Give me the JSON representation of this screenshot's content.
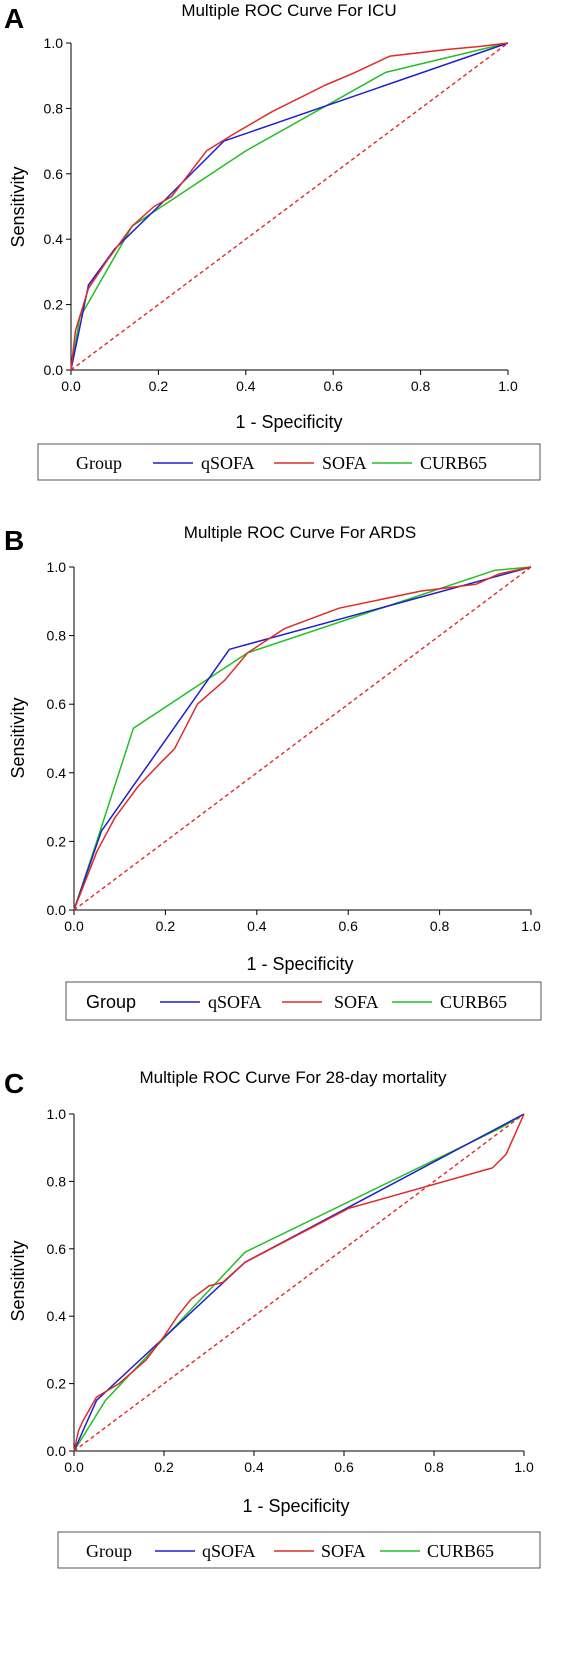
{
  "series_colors": {
    "qSOFA": "#1f1fd0",
    "SOFA": "#e02a2a",
    "CURB65": "#22c022",
    "reference": "#e02a2a"
  },
  "chart_data": [
    {
      "type": "line",
      "panel_label": "A",
      "title": "Multiple ROC Curve For ICU",
      "xlabel": "1 - Specificity",
      "ylabel": "Sensitivity",
      "xlim": [
        0,
        1
      ],
      "ylim": [
        0,
        1
      ],
      "xticks": [
        "0.0",
        "0.2",
        "0.4",
        "0.6",
        "0.8",
        "1.0"
      ],
      "yticks": [
        "0.0",
        "0.2",
        "0.4",
        "0.6",
        "0.8",
        "1.0"
      ],
      "legend_title": "Group",
      "legend_position": "bottom",
      "reference_line": {
        "style": "dashed",
        "x": [
          0,
          1
        ],
        "y": [
          0,
          1
        ]
      },
      "series": [
        {
          "name": "qSOFA",
          "x": [
            0,
            0.04,
            0.1,
            0.2,
            0.35,
            1.0
          ],
          "y": [
            0,
            0.26,
            0.37,
            0.5,
            0.7,
            1.0
          ]
        },
        {
          "name": "SOFA",
          "x": [
            0,
            0.01,
            0.04,
            0.08,
            0.14,
            0.19,
            0.23,
            0.31,
            0.37,
            0.46,
            0.58,
            0.65,
            0.73,
            0.86,
            0.94,
            1.0
          ],
          "y": [
            0,
            0.12,
            0.25,
            0.33,
            0.44,
            0.5,
            0.53,
            0.67,
            0.72,
            0.79,
            0.87,
            0.91,
            0.96,
            0.98,
            0.99,
            1.0
          ]
        },
        {
          "name": "CURB65",
          "x": [
            0,
            0.02,
            0.14,
            0.4,
            0.72,
            1.0
          ],
          "y": [
            0,
            0.16,
            0.44,
            0.67,
            0.91,
            1.0
          ]
        }
      ]
    },
    {
      "type": "line",
      "panel_label": "B",
      "title": "Multiple ROC Curve For ARDS",
      "xlabel": "1 - Specificity",
      "ylabel": "Sensitivity",
      "xlim": [
        0,
        1
      ],
      "ylim": [
        0,
        1
      ],
      "xticks": [
        "0.0",
        "0.2",
        "0.4",
        "0.6",
        "0.8",
        "1.0"
      ],
      "yticks": [
        "0.0",
        "0.2",
        "0.4",
        "0.6",
        "0.8",
        "1.0"
      ],
      "legend_title": "Group",
      "legend_position": "bottom",
      "reference_line": {
        "style": "dashed",
        "x": [
          0,
          1
        ],
        "y": [
          0,
          1
        ]
      },
      "series": [
        {
          "name": "qSOFA",
          "x": [
            0,
            0.06,
            0.34,
            1.0
          ],
          "y": [
            0,
            0.23,
            0.76,
            1.0
          ]
        },
        {
          "name": "SOFA",
          "x": [
            0,
            0.05,
            0.09,
            0.14,
            0.19,
            0.22,
            0.27,
            0.33,
            0.38,
            0.46,
            0.58,
            0.76,
            0.88,
            0.93,
            1.0
          ],
          "y": [
            0,
            0.17,
            0.27,
            0.36,
            0.43,
            0.47,
            0.6,
            0.67,
            0.75,
            0.82,
            0.88,
            0.93,
            0.95,
            0.98,
            1.0
          ]
        },
        {
          "name": "CURB65",
          "x": [
            0,
            0.05,
            0.13,
            0.38,
            0.92,
            1.0
          ],
          "y": [
            0,
            0.2,
            0.53,
            0.75,
            0.99,
            1.0
          ]
        }
      ]
    },
    {
      "type": "line",
      "panel_label": "C",
      "title": "Multiple ROC Curve For 28-day mortality",
      "xlabel": "1 - Specificity",
      "ylabel": "Sensitivity",
      "xlim": [
        0,
        1
      ],
      "ylim": [
        0,
        1
      ],
      "xticks": [
        "0.0",
        "0.2",
        "0.4",
        "0.6",
        "0.8",
        "1.0"
      ],
      "yticks": [
        "0.0",
        "0.2",
        "0.4",
        "0.6",
        "0.8",
        "1.0"
      ],
      "legend_title": "Group",
      "legend_position": "bottom",
      "reference_line": {
        "style": "dashed",
        "x": [
          0,
          1
        ],
        "y": [
          0,
          1
        ]
      },
      "series": [
        {
          "name": "qSOFA",
          "x": [
            0,
            0.05,
            0.38,
            1.0
          ],
          "y": [
            0,
            0.15,
            0.56,
            1.0
          ]
        },
        {
          "name": "SOFA",
          "x": [
            0,
            0.01,
            0.02,
            0.05,
            0.1,
            0.16,
            0.2,
            0.23,
            0.26,
            0.3,
            0.33,
            0.38,
            0.61,
            0.93,
            0.96,
            1.0
          ],
          "y": [
            0,
            0.06,
            0.09,
            0.16,
            0.2,
            0.27,
            0.34,
            0.4,
            0.45,
            0.49,
            0.5,
            0.56,
            0.72,
            0.84,
            0.88,
            1.0
          ]
        },
        {
          "name": "CURB65",
          "x": [
            0,
            0.07,
            0.38,
            0.95,
            1.0
          ],
          "y": [
            0,
            0.15,
            0.59,
            0.96,
            1.0
          ]
        }
      ]
    }
  ]
}
